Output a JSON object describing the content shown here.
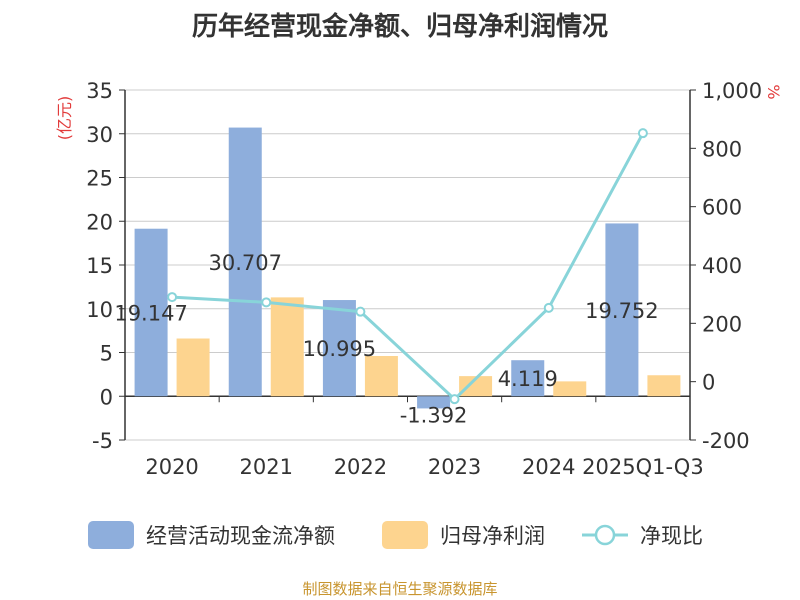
{
  "chart_data": {
    "type": "bar",
    "title": "历年经营现金净额、归母净利润情况",
    "categories": [
      "2020",
      "2021",
      "2022",
      "2023",
      "2024",
      "2025Q1-Q3"
    ],
    "series": [
      {
        "name": "经营活动现金流净额",
        "kind": "bar",
        "axis": "left",
        "color": "#8eaedc",
        "values": [
          19.147,
          30.707,
          10.995,
          -1.392,
          4.119,
          19.752
        ],
        "labels": [
          "19.147",
          "30.707",
          "10.995",
          "-1.392",
          "4.119",
          "19.752"
        ]
      },
      {
        "name": "归母净利润",
        "kind": "bar",
        "axis": "left",
        "color": "#fdd48f",
        "values": [
          6.6,
          11.3,
          4.6,
          2.3,
          1.7,
          2.4
        ]
      },
      {
        "name": "净现比",
        "kind": "line",
        "axis": "right",
        "color": "#88d4d9",
        "values": [
          290,
          272,
          240,
          -60,
          253,
          852
        ]
      }
    ],
    "y_left": {
      "label": "(亿元)",
      "min": -5,
      "max": 35,
      "ticks": [
        "-5",
        "0",
        "5",
        "10",
        "15",
        "20",
        "25",
        "30",
        "35"
      ]
    },
    "y_right": {
      "label": "%",
      "min": -200,
      "max": 1000,
      "ticks": [
        "-200",
        "0",
        "200",
        "400",
        "600",
        "800",
        "1,000"
      ]
    },
    "grid": true,
    "legend_position": "bottom"
  },
  "source": "制图数据来自恒生聚源数据库"
}
